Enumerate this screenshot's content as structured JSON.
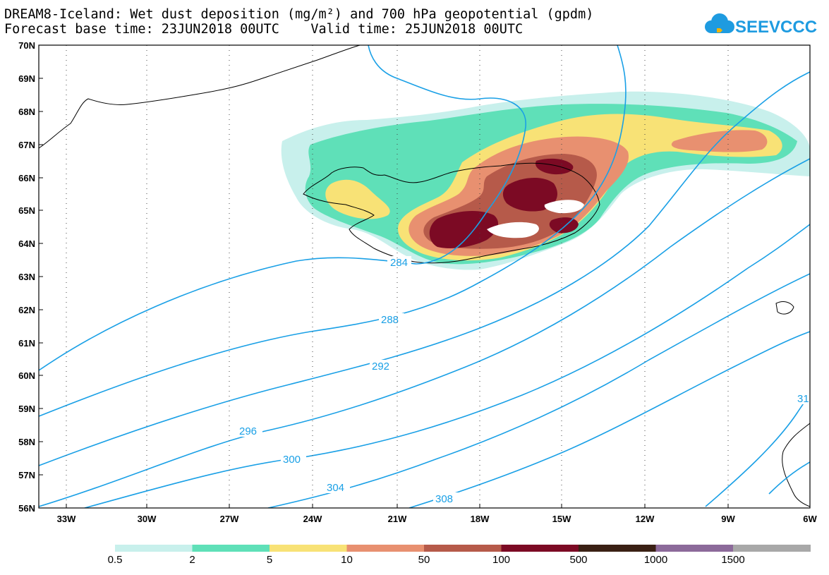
{
  "header": {
    "title_line1": "DREAM8-Iceland: Wet dust deposition (mg/m²) and 700 hPa geopotential (gpdm)",
    "title_line2": "Forecast base time: 23JUN2018 00UTC    Valid time: 25JUN2018 00UTC"
  },
  "logo": {
    "text": "SEEVCCC",
    "icon": "cloud-icon",
    "color": "#1e9be0"
  },
  "map": {
    "lat_labels": [
      "70N",
      "69N",
      "68N",
      "67N",
      "66N",
      "65N",
      "64N",
      "63N",
      "62N",
      "61N",
      "60N",
      "59N",
      "58N",
      "57N",
      "56N"
    ],
    "lon_labels": [
      "33W",
      "30W",
      "27W",
      "24W",
      "21W",
      "18W",
      "15W",
      "12W",
      "9W",
      "6W"
    ],
    "lat_range": [
      56,
      70
    ],
    "lon_range": [
      -34.5,
      -6
    ],
    "contour_color": "#1aa0e6",
    "contour_labels": [
      "284",
      "288",
      "292",
      "296",
      "300",
      "304",
      "308",
      "31"
    ]
  },
  "legend": {
    "labels": [
      "0.5",
      "2",
      "5",
      "10",
      "50",
      "100",
      "500",
      "1000",
      "1500"
    ],
    "colors": [
      "#c8f0ec",
      "#5fe0b8",
      "#f8e276",
      "#e89070",
      "#b65a4a",
      "#7c0a24",
      "#3a2014",
      "#8c6a9a",
      "#a8a8a8"
    ]
  }
}
